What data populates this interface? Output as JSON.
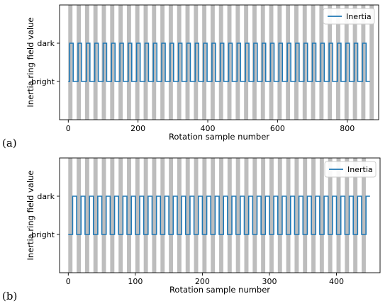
{
  "colors": {
    "line": "#1f77b4",
    "band": "#bdbdbd",
    "axis": "#000000"
  },
  "chart_data": [
    {
      "type": "line",
      "panel_label": "(a)",
      "xlabel": "Rotation sample number",
      "ylabel": "Inertia ring field value",
      "xlim": [
        -25,
        890
      ],
      "ylim": [
        -1,
        2
      ],
      "xticks": [
        0,
        200,
        400,
        600,
        800
      ],
      "yticks": [
        {
          "value": 0,
          "label": "bright"
        },
        {
          "value": 1,
          "label": "dark"
        }
      ],
      "legend": {
        "placement": "top-right",
        "entries": [
          "Inertia"
        ]
      },
      "grid": false,
      "series": [
        {
          "name": "Inertia",
          "pattern": "square wave",
          "x_start": 0,
          "x_end": 865,
          "period": 24,
          "low_value": 0,
          "high_value": 1,
          "first_low_at": 0,
          "rise_offset": 4,
          "fall_offset": 14
        }
      ],
      "shaded_bands": {
        "start": 0,
        "end": 865,
        "period": 24,
        "band_width": 12
      }
    },
    {
      "type": "line",
      "panel_label": "(b)",
      "xlabel": "Rotation sample number",
      "ylabel": "Inertia ring field value",
      "xlim": [
        -13,
        465
      ],
      "ylim": [
        -1,
        2
      ],
      "xticks": [
        0,
        100,
        200,
        300,
        400
      ],
      "yticks": [
        {
          "value": 0,
          "label": "bright"
        },
        {
          "value": 1,
          "label": "dark"
        }
      ],
      "legend": {
        "placement": "top-right",
        "entries": [
          "Inertia"
        ]
      },
      "grid": false,
      "series": [
        {
          "name": "Inertia",
          "pattern": "square wave",
          "x_start": 0,
          "x_end": 450,
          "period": 12.5,
          "low_value": 0,
          "high_value": 1,
          "first_low_at": 0,
          "rise_offset": 6.5,
          "fall_offset": 0
        }
      ],
      "shaded_bands": {
        "start": 0,
        "end": 450,
        "period": 12.5,
        "band_width": 6.25
      }
    }
  ]
}
